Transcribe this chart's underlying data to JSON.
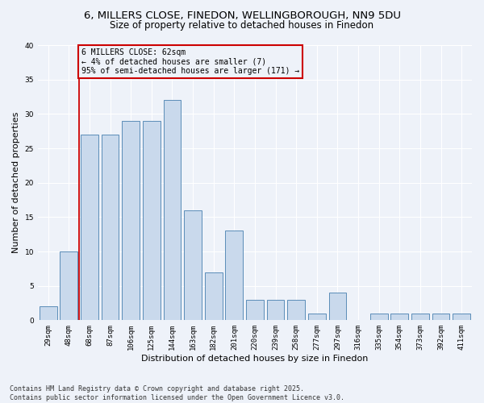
{
  "title1": "6, MILLERS CLOSE, FINEDON, WELLINGBOROUGH, NN9 5DU",
  "title2": "Size of property relative to detached houses in Finedon",
  "xlabel": "Distribution of detached houses by size in Finedon",
  "ylabel": "Number of detached properties",
  "categories": [
    "29sqm",
    "48sqm",
    "68sqm",
    "87sqm",
    "106sqm",
    "125sqm",
    "144sqm",
    "163sqm",
    "182sqm",
    "201sqm",
    "220sqm",
    "239sqm",
    "258sqm",
    "277sqm",
    "297sqm",
    "316sqm",
    "335sqm",
    "354sqm",
    "373sqm",
    "392sqm",
    "411sqm"
  ],
  "values": [
    2,
    10,
    27,
    27,
    29,
    29,
    32,
    16,
    7,
    13,
    3,
    3,
    3,
    1,
    4,
    0,
    1,
    1,
    1,
    1,
    1
  ],
  "bar_color": "#c9d9ec",
  "bar_edge_color": "#5b8db8",
  "vline_x": 1.5,
  "vline_color": "#cc0000",
  "annotation_text": "6 MILLERS CLOSE: 62sqm\n← 4% of detached houses are smaller (7)\n95% of semi-detached houses are larger (171) →",
  "annotation_box_color": "#cc0000",
  "ylim": [
    0,
    40
  ],
  "yticks": [
    0,
    5,
    10,
    15,
    20,
    25,
    30,
    35,
    40
  ],
  "footer": "Contains HM Land Registry data © Crown copyright and database right 2025.\nContains public sector information licensed under the Open Government Licence v3.0.",
  "background_color": "#eef2f9",
  "grid_color": "#ffffff",
  "title_fontsize": 9.5,
  "subtitle_fontsize": 8.5,
  "tick_fontsize": 6.5,
  "label_fontsize": 8,
  "footer_fontsize": 6,
  "annotation_fontsize": 7
}
